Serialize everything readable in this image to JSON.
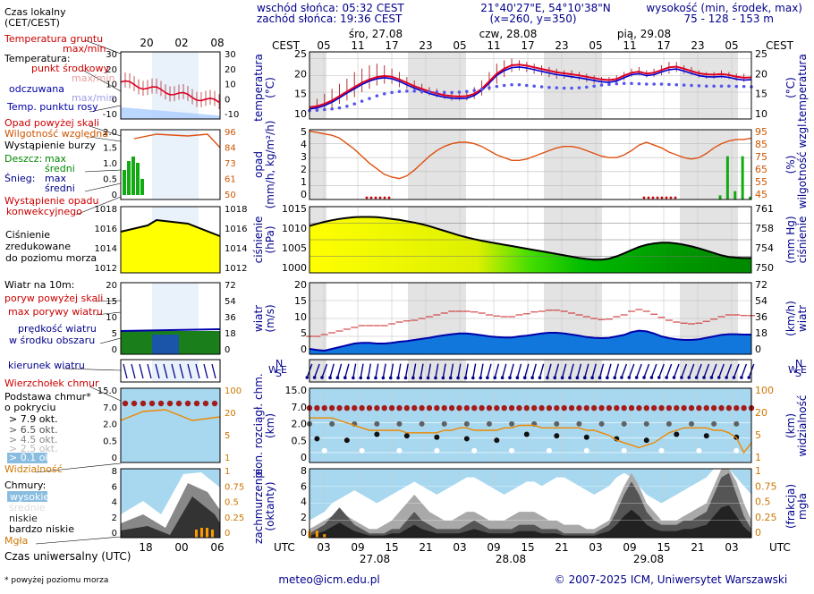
{
  "header": {
    "sunrise": "wschód słońca: 05:32 CEST",
    "sunset": "zachód słońca: 19:36 CEST",
    "coords": "21°40'27\"E, 54°10'38\"N",
    "grid": "(x=260,  y=350)",
    "height_label": "wysokość (min, środek, max)",
    "height_values": "75 - 128 - 153 m"
  },
  "time_axis": {
    "cest_label": "CEST",
    "utc_label": "UTC",
    "cest_ticks": [
      "05",
      "11",
      "17",
      "23",
      "05",
      "11",
      "17",
      "23",
      "05",
      "11",
      "17",
      "23",
      "05"
    ],
    "utc_ticks": [
      "03",
      "09",
      "15",
      "21",
      "03",
      "09",
      "15",
      "21",
      "03",
      "09",
      "15",
      "21",
      "03"
    ],
    "days_top": [
      "śro, 27.08",
      "czw, 28.08",
      "pią, 29.08"
    ],
    "days_bottom": [
      "27.08",
      "28.08",
      "29.08"
    ]
  },
  "legend": {
    "local_time": "Czas lokalny",
    "local_time2": "(CET/CEST)",
    "top_ticks": [
      "20",
      "02",
      "08"
    ],
    "bottom_ticks": [
      "18",
      "00",
      "06"
    ],
    "utc_time": "Czas uniwersalny (UTC)",
    "footnote": "* powyżej poziomu morza",
    "temp": {
      "ground": "Temperatura gruntu",
      "maxmin": "max/min",
      "temp": "Temperatura:",
      "mid": "punkt środkowy",
      "maxmin2": "max/min",
      "felt": "odczuwana",
      "maxmin3": "max/min",
      "dew": "Temp. punktu rosy",
      "ticks": [
        "30",
        "20",
        "10",
        "0",
        "-10"
      ]
    },
    "precip": {
      "above": "Opad powyżej skali",
      "hum": "Wilgotność względna",
      "storm": "Wystąpienie burzy",
      "rain": "Deszcz:",
      "max": "max",
      "mid": "średni",
      "snow": "Śnieg:",
      "max2": "max",
      "mid2": "średni",
      "conv": "Wystąpienie opadu",
      "conv2": "konwekcyjnego",
      "left_ticks": [
        "2.0",
        "1.5",
        "1.0",
        "0.5",
        "0"
      ],
      "right_ticks": [
        "96",
        "84",
        "73",
        "61",
        "50"
      ]
    },
    "pressure": {
      "l1": "Ciśnienie",
      "l2": "zredukowane",
      "l3": "do poziomu morza",
      "left_ticks": [
        "1018",
        "1016",
        "1014",
        "1012"
      ],
      "right_ticks": [
        "1018",
        "1016",
        "1014",
        "1012"
      ]
    },
    "wind": {
      "l1": "Wiatr na 10m:",
      "gust_above": "poryw powyżej skali",
      "gust": "max porywy wiatru",
      "speed": "prędkość wiatru",
      "speed2": "w środku obszaru",
      "left_ticks": [
        "20",
        "15",
        "10",
        "5",
        "0"
      ],
      "right_ticks": [
        "72",
        "54",
        "36",
        "18",
        "0"
      ]
    },
    "direction": {
      "l1": "kierunek wiatru"
    },
    "clouds1": {
      "top": "Wierzchołek chmur",
      "base": "Podstawa chmur*",
      "cover": "o pokryciu",
      "o1": "> 7.9 okt.",
      "o2": "> 6.5 okt.",
      "o3": "> 4.5 okt.",
      "o4": "> 2.5 okt.",
      "o5": "> 0.1 okt.",
      "vis": "Widzialność",
      "left_ticks": [
        "15.0",
        "7.0",
        "2.0",
        "0.5",
        "0"
      ],
      "right_ticks": [
        "100",
        "20",
        "5",
        "1"
      ]
    },
    "clouds2": {
      "title": "Chmury:",
      "high": "wysokie",
      "mid": "średnie",
      "low": "niskie",
      "vlow": "bardzo niskie",
      "fog": "Mgła",
      "left_ticks": [
        "8",
        "6",
        "4",
        "2",
        "0"
      ],
      "right_ticks": [
        "1",
        "0.75",
        "0.5",
        "0.25",
        "0"
      ]
    }
  },
  "panels": {
    "temp": {
      "label1": "temperatura",
      "label2": "(°C)",
      "ticks": [
        "25",
        "20",
        "15",
        "10"
      ],
      "rlabel1": "temperatura",
      "rlabel2": "(°C)"
    },
    "precip": {
      "label1": "opad",
      "label2": "(mm/h, kg/m²/h)",
      "ticks": [
        "5",
        "4",
        "3",
        "2",
        "1",
        "0"
      ],
      "rticks": [
        "95",
        "85",
        "75",
        "65",
        "55",
        "45"
      ],
      "rlabel1": "wilgotność wzgl.",
      "rlabel2": "(%)"
    },
    "pressure": {
      "label1": "ciśnienie",
      "label2": "(hPa)",
      "ticks": [
        "1015",
        "1010",
        "1005",
        "1000"
      ],
      "rticks": [
        "761",
        "758",
        "754",
        "750"
      ],
      "rlabel1": "ciśnienie",
      "rlabel2": "(mm Hg)"
    },
    "wind": {
      "label1": "wiatr",
      "label2": "(m/s)",
      "ticks": [
        "20",
        "15",
        "10",
        "5",
        "0"
      ],
      "rticks": [
        "72",
        "54",
        "36",
        "18",
        "0"
      ],
      "rlabel1": "wiatr",
      "rlabel2": "(km/h)"
    },
    "dir": {
      "W": "W",
      "N": "N",
      "S": "S",
      "E": "E"
    },
    "clouds": {
      "label1": "pion. rozciągł. chm.",
      "label2": "(km)",
      "ticks": [
        "15.0",
        "7.0",
        "2.0",
        "0.5",
        "0"
      ],
      "rticks": [
        "100",
        "20",
        "5",
        "1"
      ],
      "rlabel1": "widzialność",
      "rlabel2": "(km)"
    },
    "cover": {
      "label1": "zachmurzenie",
      "label2": "(oktanty)",
      "ticks": [
        "8",
        "6",
        "4",
        "2",
        "0"
      ],
      "rticks": [
        "1",
        "0.75",
        "0.5",
        "0.25",
        "0"
      ],
      "rlabel1": "mgła",
      "rlabel2": "(frakcja)"
    }
  },
  "footer": {
    "email": "meteo@icm.edu.pl",
    "copyright": "© 2007-2025 ICM, Uniwersytet Warszawski"
  },
  "chart_data": [
    {
      "type": "line",
      "name_hint": "temperature",
      "x_hours_cest_start": "27.08 02:00",
      "ylim": [
        7,
        27
      ],
      "mid": [
        10.5,
        10.8,
        11.5,
        12.5,
        13.8,
        15.2,
        16.5,
        17.8,
        18.8,
        19.5,
        19.8,
        19.6,
        18.8,
        17.8,
        16.8,
        16,
        15.2,
        14.6,
        14.1,
        13.8,
        13.7,
        13.8,
        14.5,
        16,
        18.2,
        20.5,
        22,
        23,
        23.2,
        22.9,
        22.4,
        21.9,
        21.4,
        20.9,
        20.6,
        20.3,
        20,
        19.6,
        19.2,
        18.8,
        18.6,
        18.9,
        19.9,
        20.8,
        21.1,
        20.5,
        20.8,
        21.6,
        22.4,
        22.6,
        22,
        21.3,
        20.6,
        20.3,
        20.2,
        20.4,
        20.1,
        19.6,
        19.3,
        19.4
      ],
      "felt": [
        10,
        10.3,
        11,
        12,
        13.3,
        14.7,
        16,
        17.3,
        18.3,
        19,
        19.3,
        19,
        18.2,
        17.2,
        16.2,
        15.4,
        14.6,
        14,
        13.5,
        13.2,
        13.1,
        13.2,
        14,
        15.5,
        17.7,
        20,
        21.4,
        22.3,
        22.5,
        22.2,
        21.7,
        21.2,
        20.7,
        20.2,
        19.9,
        19.6,
        19.3,
        18.9,
        18.5,
        18.1,
        17.9,
        18.3,
        19.3,
        20.2,
        20.5,
        19.9,
        20.2,
        21,
        21.7,
        21.9,
        21.3,
        20.6,
        19.9,
        19.6,
        19.5,
        19.7,
        19.4,
        18.9,
        18.6,
        18.7
      ],
      "dew": [
        9.5,
        9.6,
        9.8,
        10,
        10.3,
        10.8,
        11.5,
        12.3,
        13.1,
        13.9,
        14.5,
        14.9,
        15.2,
        15.3,
        15.3,
        15.2,
        15.1,
        15,
        14.9,
        14.9,
        15,
        15.2,
        15.5,
        15.9,
        16.3,
        16.7,
        17,
        17.2,
        17.2,
        17,
        16.8,
        16.6,
        16.4,
        16.3,
        16.2,
        16.2,
        16.3,
        16.5,
        16.8,
        17.1,
        17.3,
        17.5,
        17.6,
        17.6,
        17.5,
        17.4,
        17.4,
        17.4,
        17.3,
        17.2,
        17.1,
        17,
        16.9,
        16.8,
        16.8,
        16.8,
        16.8,
        16.7,
        16.7,
        16.6
      ],
      "max": [
        12,
        13,
        14.5,
        16,
        17.5,
        19,
        21,
        22,
        23,
        23.5,
        23,
        22,
        21,
        19.5,
        18.5,
        17.5,
        16.5,
        16,
        15.5,
        15,
        14.5,
        15,
        16.5,
        18.5,
        21,
        23.5,
        24.5,
        25,
        24.5,
        24,
        23.5,
        23,
        22.5,
        22,
        21.5,
        21.5,
        21,
        20.5,
        20,
        19.5,
        19.5,
        20,
        21,
        22,
        22.5,
        21.5,
        22,
        23,
        24,
        24,
        23,
        22.5,
        21.5,
        21,
        21,
        21.5,
        21,
        20.5,
        20.5,
        20.5
      ],
      "min": [
        9,
        9.5,
        10,
        10.5,
        11.5,
        12.5,
        13.5,
        15,
        16,
        17,
        17.5,
        17.5,
        16.5,
        16,
        15.5,
        14.5,
        14,
        13.5,
        13,
        12.5,
        12.5,
        12.5,
        13,
        14,
        15.5,
        17.5,
        19.5,
        21,
        21.5,
        21,
        20.5,
        20,
        19.5,
        19,
        19,
        19,
        18.5,
        18,
        17.5,
        17,
        17,
        17.5,
        18.5,
        19.5,
        20,
        19.5,
        19.5,
        20,
        20.5,
        21,
        20.5,
        20,
        19.5,
        19,
        19,
        19.5,
        19,
        18.5,
        18,
        18
      ]
    },
    {
      "type": "line",
      "name_hint": "precipitation & humidity",
      "ylim": [
        0,
        5
      ],
      "humidity_ylim": [
        45,
        95
      ],
      "humidity": [
        94,
        93,
        92,
        91,
        89,
        85,
        81,
        76,
        71,
        67,
        63,
        61,
        60,
        62,
        66,
        71,
        76,
        80,
        83,
        85,
        86,
        86,
        85,
        83,
        80,
        77,
        75,
        73,
        73,
        74,
        76,
        78,
        80,
        82,
        83,
        83,
        82,
        80,
        78,
        76,
        75,
        75,
        77,
        80,
        84,
        86,
        84,
        82,
        79,
        77,
        75,
        74,
        75,
        78,
        82,
        85,
        87,
        88,
        88,
        89
      ],
      "precip_end_mm": [
        0,
        0,
        0,
        0,
        0,
        0,
        0,
        0,
        0,
        0,
        0,
        0,
        0,
        0,
        0,
        0,
        0,
        0,
        0,
        0,
        0,
        0,
        0,
        0,
        0,
        0,
        0,
        0,
        0,
        0,
        0,
        0,
        0,
        0,
        0,
        0,
        0,
        0,
        0,
        0,
        0,
        0,
        0,
        0,
        0,
        0,
        0,
        0,
        0,
        0,
        0,
        0,
        0,
        0,
        0,
        0.3,
        3.1,
        0.6,
        3.1,
        0.2
      ]
    },
    {
      "type": "area",
      "name_hint": "pressure",
      "ylim": [
        1000,
        1020
      ],
      "values": [
        1014.2,
        1014.8,
        1015.4,
        1015.9,
        1016.3,
        1016.6,
        1016.8,
        1016.9,
        1016.9,
        1016.8,
        1016.6,
        1016.3,
        1016,
        1015.6,
        1015.2,
        1014.7,
        1014.1,
        1013.4,
        1012.7,
        1012,
        1011.3,
        1010.7,
        1010.2,
        1009.7,
        1009.3,
        1008.9,
        1008.5,
        1008.1,
        1007.7,
        1007.3,
        1006.9,
        1006.5,
        1006.1,
        1005.7,
        1005.3,
        1004.9,
        1004.5,
        1004.2,
        1004,
        1004,
        1004.3,
        1005,
        1005.9,
        1006.9,
        1007.8,
        1008.5,
        1008.9,
        1009.1,
        1009.1,
        1008.9,
        1008.5,
        1008,
        1007.4,
        1006.7,
        1006,
        1005.3,
        1004.8,
        1004.6,
        1004.5,
        1004.5
      ]
    },
    {
      "type": "line",
      "name_hint": "wind",
      "ylim": [
        0,
        20
      ],
      "speed": [
        1.5,
        1.2,
        1,
        1.5,
        2,
        2.5,
        3,
        3.2,
        3.2,
        3,
        3,
        3.2,
        3.5,
        3.7,
        4,
        4.3,
        4.6,
        5,
        5.3,
        5.6,
        5.8,
        5.8,
        5.6,
        5.3,
        5,
        4.8,
        4.7,
        4.7,
        5,
        5.2,
        5.5,
        5.8,
        6,
        6,
        5.8,
        5.5,
        5.2,
        4.8,
        4.6,
        4.5,
        4.6,
        5,
        5.4,
        6.2,
        6.6,
        6.4,
        5.8,
        5,
        4.5,
        4.2,
        4,
        4,
        4.2,
        4.6,
        5,
        5.4,
        5.6,
        5.6,
        5.5,
        5.5
      ],
      "gusts": [
        5,
        5,
        5.5,
        6,
        6.5,
        7,
        7.5,
        8,
        8,
        8,
        8,
        8.5,
        9,
        9.3,
        9.5,
        10,
        10.5,
        11,
        11.5,
        12,
        12,
        12,
        11.8,
        11.5,
        11,
        10.7,
        10.5,
        10.5,
        11,
        11.3,
        11.8,
        12,
        12.3,
        12.3,
        12,
        11.5,
        11,
        10.5,
        10,
        9.7,
        9.8,
        10.5,
        11,
        12,
        12.5,
        12,
        11.2,
        10.3,
        9.5,
        9,
        8.7,
        8.5,
        8.7,
        9.2,
        9.8,
        10.5,
        11,
        11,
        10.8,
        10.8
      ],
      "direction_deg": [
        200,
        200,
        200,
        195,
        195,
        195,
        190,
        190,
        190,
        190,
        190,
        190,
        190,
        190,
        190,
        190,
        190,
        190,
        190,
        190,
        190,
        190,
        190,
        190,
        195,
        195,
        195,
        195,
        195,
        195,
        195,
        195,
        195,
        195,
        195,
        195,
        195,
        195,
        195,
        195,
        195,
        195,
        200,
        200,
        200,
        200,
        200,
        200,
        200,
        200,
        200,
        200,
        200,
        200,
        200,
        200,
        200,
        200,
        200,
        200
      ]
    },
    {
      "type": "scatter",
      "name_hint": "cloud vertical extent & visibility",
      "ylim": [
        0,
        15
      ],
      "cloud_top_km": 11,
      "visibility_km": [
        18,
        18,
        18,
        18,
        17,
        16,
        15,
        14,
        13,
        13,
        13,
        13,
        13,
        12,
        12,
        12,
        12,
        12,
        13,
        13,
        14,
        14,
        13,
        13,
        13,
        13,
        14,
        14,
        15,
        15,
        15,
        14,
        14,
        14,
        14,
        14,
        14,
        13,
        13,
        12,
        11,
        9,
        8,
        7,
        6,
        7,
        8,
        10,
        12,
        13,
        14,
        14,
        14,
        14,
        13,
        13,
        12,
        10,
        4,
        8
      ]
    },
    {
      "type": "area",
      "name_hint": "cloud cover",
      "ylim": [
        0,
        8
      ],
      "high": [
        2,
        2.5,
        3,
        4,
        4.5,
        5,
        5.5,
        5,
        4.5,
        4,
        4.5,
        5,
        5.5,
        6,
        6.5,
        6,
        5.5,
        5,
        5.5,
        6,
        6.5,
        7,
        7,
        6.5,
        6,
        5.5,
        5,
        5.5,
        6,
        6.5,
        6.5,
        6,
        6.5,
        7,
        7,
        6.5,
        6,
        5.5,
        5,
        5.5,
        6,
        7,
        7.5,
        7,
        6,
        5,
        4.5,
        4,
        4.5,
        5,
        5.5,
        6,
        6.5,
        7,
        8,
        8,
        8,
        7,
        6,
        5
      ],
      "mid": [
        1,
        1.5,
        2,
        2.5,
        3,
        2.5,
        2,
        1.5,
        1,
        1,
        1.5,
        2,
        3,
        4,
        5,
        4,
        3,
        2.5,
        2,
        2,
        2.5,
        3,
        3,
        2.5,
        2,
        2,
        2,
        2.5,
        3,
        3,
        3,
        2.5,
        2,
        2,
        1.5,
        1.5,
        1.5,
        1,
        1,
        1.5,
        2,
        4,
        6,
        7.5,
        6,
        4,
        3,
        2,
        2,
        2,
        2.5,
        3,
        3.5,
        4,
        6,
        8,
        8,
        6.5,
        4,
        2
      ],
      "low": [
        0.5,
        1,
        1.5,
        2.5,
        3.5,
        2.5,
        1.5,
        1,
        0.5,
        0.5,
        0.5,
        1,
        1,
        2,
        3,
        2,
        1.5,
        1,
        1,
        1,
        1,
        1.5,
        2,
        1.5,
        1,
        1,
        1,
        1,
        1.5,
        1.5,
        1.5,
        1,
        1,
        1,
        0.5,
        0.5,
        0.5,
        0.5,
        0.5,
        1,
        1.5,
        3,
        5,
        6.5,
        5,
        3,
        2,
        1.5,
        1.5,
        1.5,
        2,
        2,
        2.5,
        3,
        5,
        7,
        7.5,
        5,
        2.5,
        1
      ],
      "fog": [
        0.1,
        0.1,
        0.05,
        0,
        0,
        0,
        0,
        0,
        0,
        0,
        0,
        0,
        0,
        0,
        0,
        0,
        0,
        0,
        0,
        0,
        0,
        0,
        0,
        0,
        0,
        0,
        0,
        0,
        0,
        0,
        0,
        0,
        0,
        0,
        0,
        0,
        0,
        0,
        0,
        0,
        0,
        0,
        0,
        0,
        0,
        0,
        0,
        0,
        0,
        0,
        0,
        0,
        0,
        0,
        0,
        0,
        0,
        0,
        0,
        0
      ]
    }
  ]
}
